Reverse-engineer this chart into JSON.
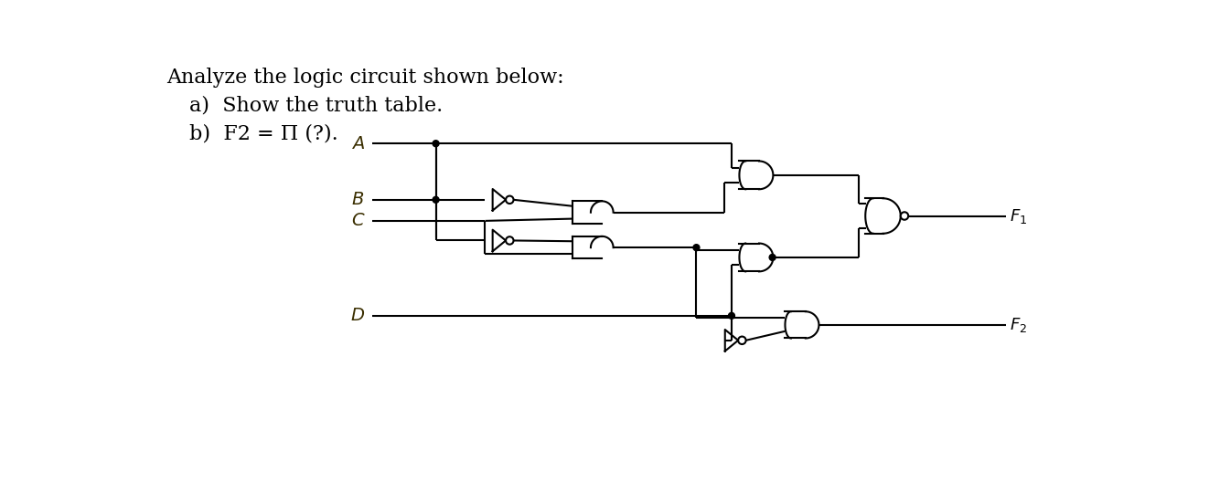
{
  "bg_color": "#ffffff",
  "line_color": "#000000",
  "text_color": "#000000",
  "lw": 1.5,
  "dot_r": 0.045,
  "bubble_r": 0.055,
  "title1": "Analyze the logic circuit shown below:",
  "title2": "a)  Show the truth table.",
  "title3": "b)  F2 = Π (?).",
  "label_A": "A",
  "label_B": "B",
  "label_C": "C",
  "label_D": "D",
  "label_F1": "$F_1$",
  "label_F2": "$F_2$"
}
